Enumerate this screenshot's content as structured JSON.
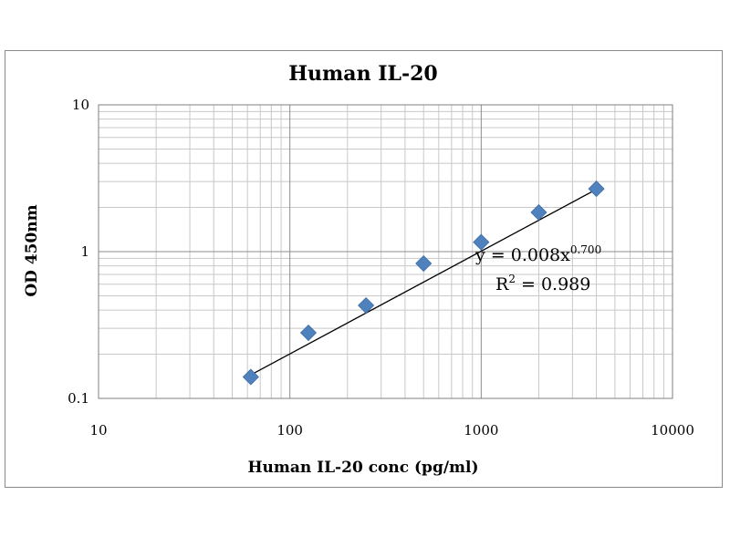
{
  "chart_data": {
    "type": "scatter",
    "title": "Human IL-20",
    "xlabel": "Human IL-20 conc (pg/ml)",
    "ylabel": "OD 450nm",
    "x_scale": "log",
    "y_scale": "log",
    "xlim": [
      10,
      10000
    ],
    "ylim": [
      0.1,
      10
    ],
    "x_ticks": [
      "10",
      "100",
      "1000",
      "10000"
    ],
    "y_ticks": [
      "0.1",
      "1",
      "10"
    ],
    "grid": true,
    "marker_color": "#4f81bd",
    "x": [
      62.5,
      125,
      250,
      500,
      1000,
      2000,
      4000
    ],
    "y": [
      0.14,
      0.28,
      0.43,
      0.83,
      1.16,
      1.85,
      2.68
    ],
    "trendline": {
      "type": "power",
      "coefficient": 0.008,
      "exponent": 0.7,
      "x_start": 62.5,
      "x_end": 4000,
      "equation_prefix": "y = 0.008x",
      "equation_exponent": "0.700",
      "r2_prefix": "R",
      "r2_power": "2",
      "r2_value": " = 0.989"
    }
  }
}
